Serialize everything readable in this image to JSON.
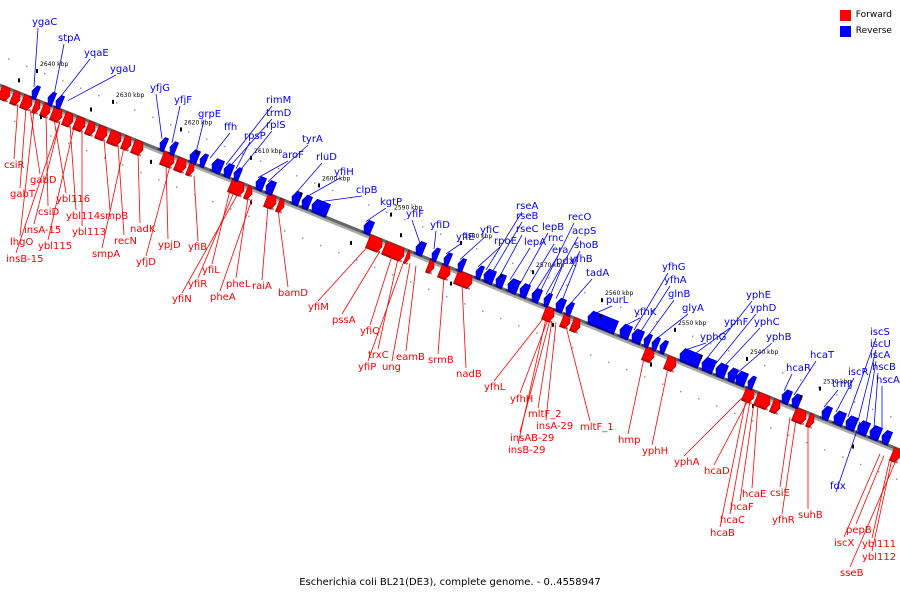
{
  "legend": {
    "forward": {
      "label": "Forward",
      "color": "#ff0000"
    },
    "reverse": {
      "label": "Reverse",
      "color": "#0000ff"
    }
  },
  "caption": "Escherichia coli BL21(DE3), complete genome. - 0..4558947",
  "axis": {
    "ticks": [
      "2640 kbp",
      "2630 kbp",
      "2620 kbp",
      "2610 kbp",
      "2600 kbp",
      "2590 kbp",
      "2580 kbp",
      "2570 kbp",
      "2560 kbp",
      "2550 kbp",
      "2540 kbp",
      "2530 kbp"
    ]
  },
  "genes": {
    "reverse": [
      "ygaC",
      "stpA",
      "yqaE",
      "ygaU",
      "yfjG",
      "yfjF",
      "grpE",
      "ffh",
      "rimM",
      "trmD",
      "rpsP",
      "rplS",
      "aroF",
      "tyrA",
      "rluD",
      "yfiH",
      "clpB",
      "kgtP",
      "yfiF",
      "yfiD",
      "yfiE",
      "yfiC",
      "rpoE",
      "rseA",
      "rseB",
      "rseC",
      "lepA",
      "lepB",
      "rnc",
      "era",
      "recO",
      "acpS",
      "pdxJ",
      "shoB",
      "yfhB",
      "tadA",
      "purL",
      "yfhK",
      "yfhG",
      "yfhA",
      "glnB",
      "glyA",
      "yphG",
      "yphF",
      "yphE",
      "yphD",
      "yphC",
      "yphB",
      "hcaR",
      "hcaT",
      "trmJ",
      "iscR",
      "iscS",
      "iscU",
      "iscA",
      "hscB",
      "hscA",
      "fdx"
    ],
    "forward": [
      "csiR",
      "gabD",
      "gabT",
      "ybl116",
      "csiD",
      "ybl114",
      "lhgO",
      "insA-15",
      "ybl113",
      "ybl115",
      "insB-15",
      "smpB",
      "recN",
      "smpA",
      "nadK",
      "ypjD",
      "yfjD",
      "yfiB",
      "yfiL",
      "yfiR",
      "yfiN",
      "pheL",
      "pheA",
      "raiA",
      "bamD",
      "yfiM",
      "pssA",
      "yfiQ",
      "trxC",
      "yfiP",
      "ung",
      "eamB",
      "srmB",
      "nadB",
      "yfhL",
      "yfhH",
      "mltF_2",
      "insA-29",
      "mltF_1",
      "insAB-29",
      "insB-29",
      "hmp",
      "yphH",
      "yphA",
      "hcaD",
      "hcaE",
      "hcaF",
      "hcaC",
      "hcaB",
      "csiE",
      "yfhR",
      "suhB",
      "pepB",
      "iscX",
      "ybl111",
      "ybl112",
      "sseB"
    ]
  }
}
